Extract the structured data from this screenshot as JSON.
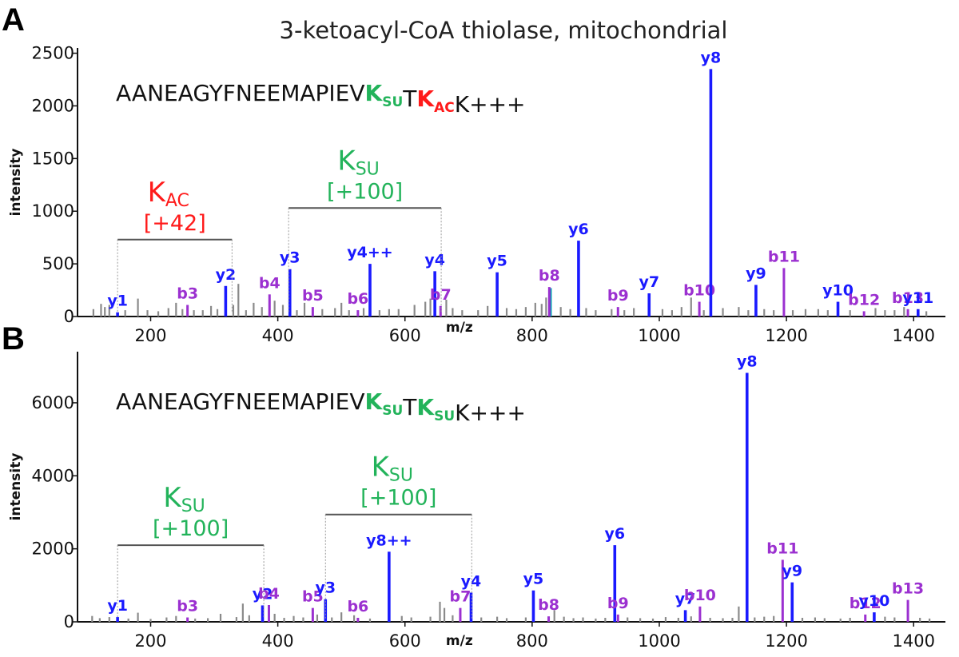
{
  "title": "3-ketoacyl-CoA thiolase, mitochondrial",
  "colors": {
    "y_ion": "#1a1aff",
    "b_ion": "#9b30d0",
    "other": "#8a8a8a",
    "ksu": "#22b35a",
    "kac": "#ff1a1a",
    "cyan": "#00a0b0"
  },
  "chart_data": [
    {
      "panel": "A",
      "type": "bar",
      "xlabel": "m/z",
      "ylabel": "intensity",
      "xlim": [
        85,
        1450
      ],
      "ylim": [
        0,
        2550
      ],
      "xticks": [
        200,
        400,
        600,
        800,
        1000,
        1200,
        1400
      ],
      "yticks": [
        0,
        500,
        1000,
        1500,
        2000,
        2500
      ],
      "sequence": [
        {
          "text": "AANEAGYFNEEMAPIEV",
          "color": "black"
        },
        {
          "text": "K",
          "sub": "SU",
          "color": "ksu"
        },
        {
          "text": "T",
          "color": "black"
        },
        {
          "text": "K",
          "sub": "AC",
          "color": "kac"
        },
        {
          "text": "K+++",
          "color": "black"
        }
      ],
      "brackets": [
        {
          "name": "K",
          "sub": "AC",
          "mass": "[+42]",
          "color": "kac",
          "x1": 148,
          "x2": 328,
          "level": 730
        },
        {
          "name": "K",
          "sub": "SU",
          "mass": "[+100]",
          "color": "ksu",
          "x1": 417,
          "x2": 657,
          "level": 1030
        }
      ],
      "peaks": [
        {
          "label": "y1",
          "type": "y",
          "mz": 148,
          "intensity": 40
        },
        {
          "label": "b3",
          "type": "b",
          "mz": 258,
          "intensity": 110
        },
        {
          "label": "y2",
          "type": "y",
          "mz": 318,
          "intensity": 290
        },
        {
          "label": "b4",
          "type": "b",
          "mz": 387,
          "intensity": 210
        },
        {
          "label": "y3",
          "type": "y",
          "mz": 419,
          "intensity": 450
        },
        {
          "label": "b5",
          "type": "b",
          "mz": 455,
          "intensity": 90
        },
        {
          "label": "b6",
          "type": "b",
          "mz": 526,
          "intensity": 60
        },
        {
          "label": "y4++",
          "type": "y",
          "mz": 545,
          "intensity": 500
        },
        {
          "label": "y4",
          "type": "y",
          "mz": 647,
          "intensity": 430
        },
        {
          "label": "b7",
          "type": "b",
          "mz": 656,
          "intensity": 100
        },
        {
          "label": "y5",
          "type": "y",
          "mz": 745,
          "intensity": 420
        },
        {
          "label": "b8",
          "type": "b",
          "mz": 827,
          "intensity": 280
        },
        {
          "label": "y6",
          "type": "y",
          "mz": 873,
          "intensity": 720
        },
        {
          "label": "b9",
          "type": "b",
          "mz": 935,
          "intensity": 90
        },
        {
          "label": "y7",
          "type": "y",
          "mz": 984,
          "intensity": 220
        },
        {
          "label": "b10",
          "type": "b",
          "mz": 1063,
          "intensity": 140
        },
        {
          "label": "y8",
          "type": "y",
          "mz": 1081,
          "intensity": 2350
        },
        {
          "label": "y9",
          "type": "y",
          "mz": 1152,
          "intensity": 300
        },
        {
          "label": "b11",
          "type": "b",
          "mz": 1196,
          "intensity": 460
        },
        {
          "label": "y10",
          "type": "y",
          "mz": 1281,
          "intensity": 140
        },
        {
          "label": "b12",
          "type": "b",
          "mz": 1322,
          "intensity": 50
        },
        {
          "label": "b13",
          "type": "b",
          "mz": 1391,
          "intensity": 70
        },
        {
          "label": "y11",
          "type": "y",
          "mz": 1407,
          "intensity": 70
        }
      ],
      "noise": [
        [
          110,
          70
        ],
        [
          122,
          120
        ],
        [
          128,
          90
        ],
        [
          135,
          110
        ],
        [
          160,
          60
        ],
        [
          180,
          170
        ],
        [
          195,
          60
        ],
        [
          212,
          50
        ],
        [
          228,
          80
        ],
        [
          240,
          130
        ],
        [
          250,
          70
        ],
        [
          268,
          60
        ],
        [
          282,
          60
        ],
        [
          295,
          100
        ],
        [
          305,
          70
        ],
        [
          330,
          110
        ],
        [
          338,
          310
        ],
        [
          350,
          60
        ],
        [
          362,
          130
        ],
        [
          375,
          90
        ],
        [
          395,
          150
        ],
        [
          408,
          110
        ],
        [
          430,
          60
        ],
        [
          442,
          130
        ],
        [
          470,
          70
        ],
        [
          490,
          80
        ],
        [
          500,
          130
        ],
        [
          512,
          60
        ],
        [
          535,
          80
        ],
        [
          560,
          60
        ],
        [
          575,
          70
        ],
        [
          590,
          70
        ],
        [
          615,
          110
        ],
        [
          632,
          140
        ],
        [
          640,
          170
        ],
        [
          665,
          160
        ],
        [
          675,
          80
        ],
        [
          690,
          60
        ],
        [
          715,
          60
        ],
        [
          730,
          100
        ],
        [
          760,
          80
        ],
        [
          775,
          70
        ],
        [
          790,
          90
        ],
        [
          805,
          130
        ],
        [
          815,
          120
        ],
        [
          822,
          180
        ],
        [
          845,
          90
        ],
        [
          860,
          70
        ],
        [
          885,
          80
        ],
        [
          900,
          60
        ],
        [
          925,
          70
        ],
        [
          945,
          60
        ],
        [
          960,
          80
        ],
        [
          1005,
          70
        ],
        [
          1020,
          60
        ],
        [
          1035,
          90
        ],
        [
          1050,
          180
        ],
        [
          1070,
          60
        ],
        [
          1100,
          80
        ],
        [
          1125,
          90
        ],
        [
          1140,
          60
        ],
        [
          1165,
          70
        ],
        [
          1180,
          60
        ],
        [
          1210,
          60
        ],
        [
          1230,
          70
        ],
        [
          1250,
          70
        ],
        [
          1265,
          60
        ],
        [
          1300,
          60
        ],
        [
          1340,
          80
        ],
        [
          1355,
          60
        ],
        [
          1370,
          60
        ],
        [
          1385,
          90
        ],
        [
          1420,
          50
        ]
      ],
      "cyan_peaks": [
        [
          829,
          270
        ]
      ]
    },
    {
      "panel": "B",
      "type": "bar",
      "xlabel": "m/z",
      "ylabel": "intensity",
      "xlim": [
        85,
        1450
      ],
      "ylim": [
        0,
        7400
      ],
      "xticks": [
        200,
        400,
        600,
        800,
        1000,
        1200,
        1400
      ],
      "yticks": [
        0,
        2000,
        4000,
        6000
      ],
      "sequence": [
        {
          "text": "AANEAGYFNEEMAPIEV",
          "color": "black"
        },
        {
          "text": "K",
          "sub": "SU",
          "color": "ksu"
        },
        {
          "text": "T",
          "color": "black"
        },
        {
          "text": "K",
          "sub": "SU",
          "color": "ksu"
        },
        {
          "text": "K+++",
          "color": "black"
        }
      ],
      "brackets": [
        {
          "name": "K",
          "sub": "SU",
          "mass": "[+100]",
          "color": "ksu",
          "x1": 148,
          "x2": 378,
          "level": 2100
        },
        {
          "name": "K",
          "sub": "SU",
          "mass": "[+100]",
          "color": "ksu",
          "x1": 475,
          "x2": 705,
          "level": 2940
        }
      ],
      "peaks": [
        {
          "label": "y1",
          "type": "y",
          "mz": 148,
          "intensity": 130
        },
        {
          "label": "b3",
          "type": "b",
          "mz": 258,
          "intensity": 120
        },
        {
          "label": "y2",
          "type": "y",
          "mz": 376,
          "intensity": 450
        },
        {
          "label": "b4",
          "type": "b",
          "mz": 386,
          "intensity": 460
        },
        {
          "label": "b5",
          "type": "b",
          "mz": 455,
          "intensity": 380
        },
        {
          "label": "y3",
          "type": "y",
          "mz": 475,
          "intensity": 620
        },
        {
          "label": "b6",
          "type": "b",
          "mz": 526,
          "intensity": 110
        },
        {
          "label": "y8++",
          "type": "y",
          "mz": 575,
          "intensity": 1920
        },
        {
          "label": "b7",
          "type": "b",
          "mz": 687,
          "intensity": 380
        },
        {
          "label": "y4",
          "type": "y",
          "mz": 704,
          "intensity": 800
        },
        {
          "label": "y5",
          "type": "y",
          "mz": 802,
          "intensity": 860
        },
        {
          "label": "b8",
          "type": "b",
          "mz": 826,
          "intensity": 150
        },
        {
          "label": "y6",
          "type": "y",
          "mz": 930,
          "intensity": 2100
        },
        {
          "label": "b9",
          "type": "b",
          "mz": 935,
          "intensity": 200
        },
        {
          "label": "y7",
          "type": "y",
          "mz": 1041,
          "intensity": 320
        },
        {
          "label": "b10",
          "type": "b",
          "mz": 1064,
          "intensity": 420
        },
        {
          "label": "y8",
          "type": "y",
          "mz": 1138,
          "intensity": 6820
        },
        {
          "label": "b11",
          "type": "b",
          "mz": 1194,
          "intensity": 1700
        },
        {
          "label": "y9",
          "type": "y",
          "mz": 1209,
          "intensity": 1080
        },
        {
          "label": "b12",
          "type": "b",
          "mz": 1324,
          "intensity": 200
        },
        {
          "label": "y10",
          "type": "y",
          "mz": 1338,
          "intensity": 260
        },
        {
          "label": "b13",
          "type": "b",
          "mz": 1391,
          "intensity": 600
        }
      ],
      "noise": [
        [
          108,
          160
        ],
        [
          120,
          100
        ],
        [
          135,
          130
        ],
        [
          165,
          90
        ],
        [
          180,
          250
        ],
        [
          200,
          80
        ],
        [
          225,
          120
        ],
        [
          240,
          160
        ],
        [
          270,
          90
        ],
        [
          290,
          100
        ],
        [
          310,
          220
        ],
        [
          335,
          130
        ],
        [
          345,
          500
        ],
        [
          355,
          180
        ],
        [
          395,
          220
        ],
        [
          410,
          110
        ],
        [
          425,
          160
        ],
        [
          440,
          120
        ],
        [
          462,
          200
        ],
        [
          485,
          120
        ],
        [
          500,
          260
        ],
        [
          520,
          180
        ],
        [
          545,
          90
        ],
        [
          595,
          160
        ],
        [
          610,
          120
        ],
        [
          640,
          140
        ],
        [
          655,
          550
        ],
        [
          662,
          380
        ],
        [
          675,
          180
        ],
        [
          720,
          120
        ],
        [
          745,
          140
        ],
        [
          760,
          100
        ],
        [
          790,
          120
        ],
        [
          835,
          320
        ],
        [
          850,
          140
        ],
        [
          865,
          100
        ],
        [
          880,
          120
        ],
        [
          900,
          90
        ],
        [
          915,
          110
        ],
        [
          950,
          120
        ],
        [
          970,
          100
        ],
        [
          990,
          90
        ],
        [
          1010,
          130
        ],
        [
          1030,
          110
        ],
        [
          1050,
          150
        ],
        [
          1080,
          110
        ],
        [
          1100,
          100
        ],
        [
          1115,
          110
        ],
        [
          1125,
          420
        ],
        [
          1150,
          120
        ],
        [
          1165,
          140
        ],
        [
          1180,
          160
        ],
        [
          1225,
          110
        ],
        [
          1245,
          120
        ],
        [
          1260,
          100
        ],
        [
          1285,
          90
        ],
        [
          1300,
          110
        ],
        [
          1355,
          140
        ],
        [
          1370,
          120
        ],
        [
          1410,
          110
        ],
        [
          1425,
          90
        ]
      ],
      "cyan_peaks": []
    }
  ]
}
